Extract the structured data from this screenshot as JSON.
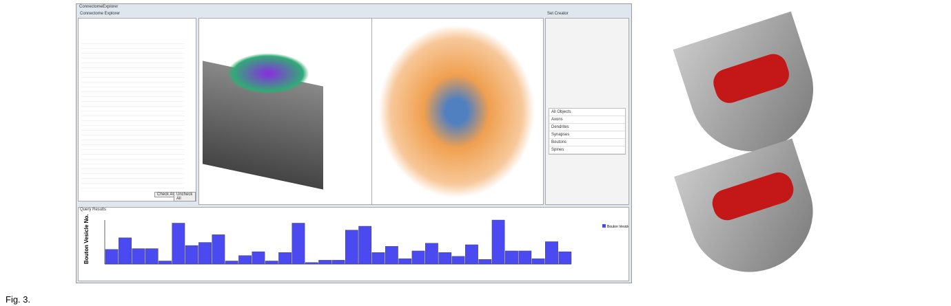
{
  "window": {
    "title": "ConnectomeExplorer"
  },
  "left_panel": {
    "title": "Connectome Explorer",
    "buttons": [
      "Check All",
      "Uncheck All"
    ]
  },
  "right_panel": {
    "title": "Set Creator",
    "sets": [
      "All Objects",
      "Axons",
      "Dendrites",
      "Synapses",
      "Boutons",
      "Spines"
    ]
  },
  "bottom_panel": {
    "title": "Query Results",
    "histogram": {
      "axis_label": "Bouton Vesicle No.",
      "legend": "Bouton Vesicle No.",
      "color": "#4a4af0",
      "values": [
        19,
        34,
        20,
        20,
        4,
        53,
        24,
        28,
        38,
        4,
        11,
        16,
        4,
        15,
        53,
        2,
        5,
        5,
        44,
        49,
        15,
        23,
        7,
        17,
        27,
        15,
        10,
        25,
        6,
        57,
        17,
        17,
        7,
        29,
        16
      ]
    }
  },
  "caption": "Fig. 3."
}
